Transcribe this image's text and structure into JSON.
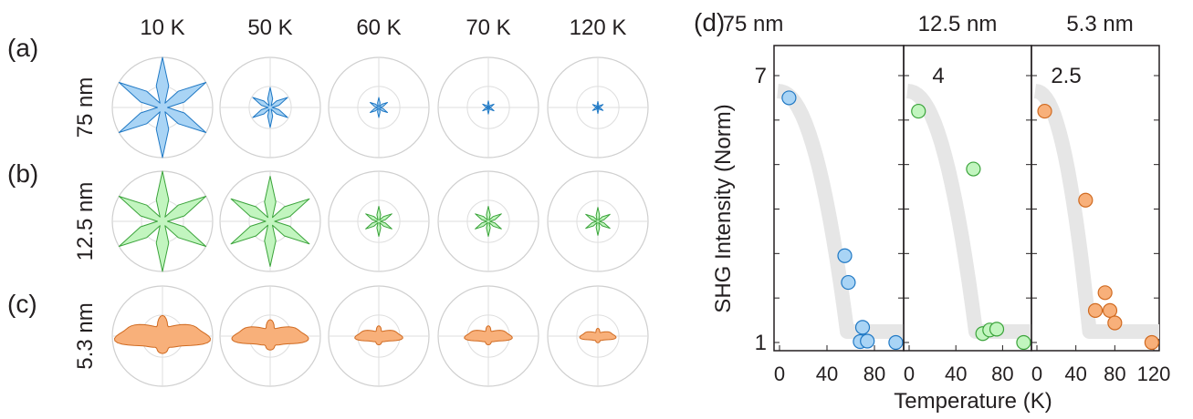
{
  "polar_panel": {
    "temperatures": [
      "10 K",
      "50 K",
      "60 K",
      "70 K",
      "120 K"
    ],
    "rows": [
      {
        "panel_label": "(a)",
        "thickness": "75 nm",
        "color": "#a9d4f5",
        "stroke": "#1f78c4",
        "shape": "six-petal",
        "amplitudes": [
          1.0,
          0.4,
          0.2,
          0.13,
          0.12
        ]
      },
      {
        "panel_label": "(b)",
        "thickness": "12.5 nm",
        "color": "#c2f5bf",
        "stroke": "#3aa33a",
        "shape": "six-petal",
        "amplitudes": [
          1.0,
          0.9,
          0.3,
          0.3,
          0.28
        ]
      },
      {
        "panel_label": "(c)",
        "thickness": "5.3 nm",
        "color": "#f8b07a",
        "stroke": "#d06a20",
        "shape": "two-lobe",
        "amplitudes": [
          1.0,
          0.8,
          0.5,
          0.5,
          0.38
        ]
      }
    ]
  },
  "chart_data": {
    "type": "scatter",
    "panel_label": "(d)",
    "ylabel": "SHG Intensity (Norm)",
    "xlabel": "Temperature (K)",
    "band_color": "#e6e6e6",
    "subplots": [
      {
        "title": "75 nm",
        "color": "#a9d4f5",
        "stroke": "#1f78c4",
        "xlim": [
          0,
          100
        ],
        "ylim": [
          1,
          7
        ],
        "xticks": [
          0,
          40,
          80
        ],
        "ytick_labels": [
          {
            "value": 7,
            "label": "7"
          },
          {
            "value": 1,
            "label": "1"
          }
        ],
        "x": [
          8,
          55,
          58,
          68,
          70,
          74,
          98
        ],
        "y": [
          6.5,
          2.95,
          2.35,
          1.02,
          1.34,
          1.03,
          1.0
        ]
      },
      {
        "title": "12.5 nm",
        "color": "#c2f5bf",
        "stroke": "#3aa33a",
        "xlim": [
          0,
          100
        ],
        "ylim": [
          1,
          4
        ],
        "xticks": [
          0,
          40,
          80
        ],
        "ytick_labels": [
          {
            "value": 4,
            "label": "4"
          }
        ],
        "x": [
          8,
          55,
          63,
          69,
          75,
          98
        ],
        "y": [
          3.6,
          2.95,
          1.1,
          1.14,
          1.15,
          1.0
        ]
      },
      {
        "title": "5.3 nm",
        "color": "#f8b07a",
        "stroke": "#d06a20",
        "xlim": [
          0,
          120
        ],
        "ylim": [
          1,
          2.5
        ],
        "xticks": [
          0,
          40,
          80,
          120
        ],
        "ytick_labels": [
          {
            "value": 2.5,
            "label": "2.5"
          }
        ],
        "x": [
          8,
          50,
          60,
          70,
          75,
          80,
          118
        ],
        "y": [
          2.3,
          1.8,
          1.18,
          1.28,
          1.18,
          1.11,
          1.0
        ]
      }
    ]
  }
}
